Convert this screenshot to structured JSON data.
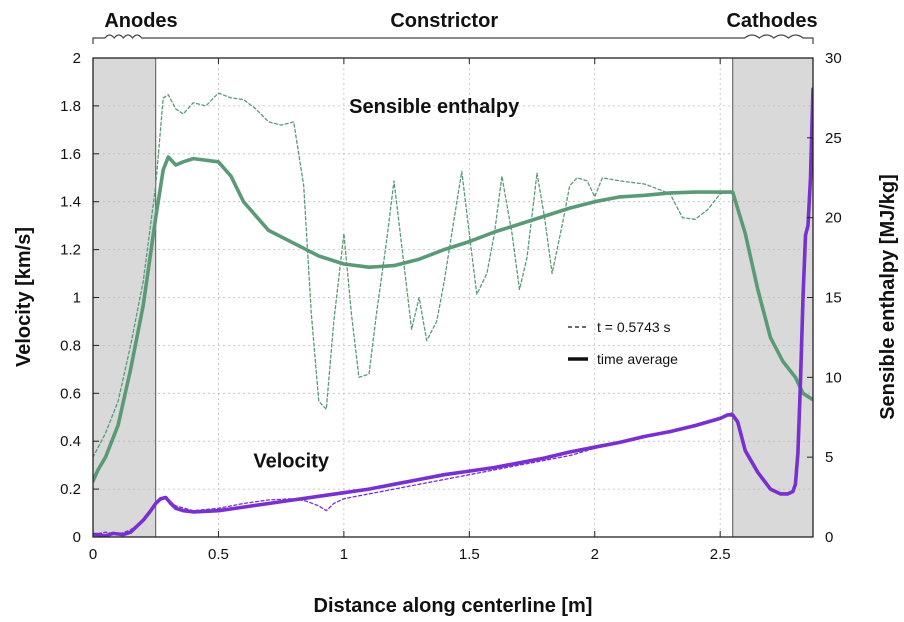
{
  "chart_data": {
    "type": "line",
    "xlabel": "Distance along centerline [m]",
    "ylabel": "Velocity [km/s]",
    "y2label": "Sensible enthalpy [MJ/kg]",
    "xlim": [
      0,
      2.87
    ],
    "ylim": [
      0,
      2
    ],
    "y2lim": [
      0,
      30
    ],
    "xticks": [
      "0",
      "0.5",
      "1",
      "1.5",
      "2",
      "2.5"
    ],
    "xtick_values": [
      0,
      0.5,
      1,
      1.5,
      2,
      2.5
    ],
    "yticks": [
      "0",
      "0.2",
      "0.4",
      "0.6",
      "0.8",
      "1",
      "1.2",
      "1.4",
      "1.6",
      "1.8",
      "2"
    ],
    "ytick_values": [
      0,
      0.2,
      0.4,
      0.6,
      0.8,
      1,
      1.2,
      1.4,
      1.6,
      1.8,
      2
    ],
    "y2ticks": [
      "0",
      "5",
      "10",
      "15",
      "20",
      "25",
      "30"
    ],
    "y2tick_values": [
      0,
      5,
      10,
      15,
      20,
      25,
      30
    ],
    "grid": true,
    "regions": [
      {
        "label": "Anodes",
        "x0": 0,
        "x1": 0.25,
        "shaded": true
      },
      {
        "label": "Constrictor",
        "x0": 0.25,
        "x1": 2.55,
        "shaded": false
      },
      {
        "label": "Cathodes",
        "x0": 2.55,
        "x1": 2.87,
        "shaded": true
      }
    ],
    "annotations": [
      {
        "text": "Sensible enthalpy",
        "x": 1.36,
        "y": 1.77
      },
      {
        "text": "Velocity",
        "x": 0.79,
        "y": 0.29
      }
    ],
    "legend": {
      "placement": "center-right",
      "entries": [
        {
          "label": "t = 0.5743 s",
          "style": "dashed"
        },
        {
          "label": "time average",
          "style": "solid"
        }
      ]
    },
    "colors": {
      "enthalpy": "#5a9a77",
      "velocity": "#7a2fd0",
      "shade": "#d9d9d9"
    },
    "series": [
      {
        "name": "Sensible enthalpy",
        "axis": "right",
        "style": "solid",
        "x": [
          0,
          0.02,
          0.05,
          0.1,
          0.15,
          0.2,
          0.25,
          0.28,
          0.3,
          0.33,
          0.36,
          0.4,
          0.5,
          0.55,
          0.6,
          0.7,
          0.8,
          0.9,
          1.0,
          1.1,
          1.2,
          1.3,
          1.4,
          1.5,
          1.6,
          1.7,
          1.8,
          1.9,
          2.0,
          2.1,
          2.2,
          2.3,
          2.4,
          2.5,
          2.55,
          2.6,
          2.65,
          2.7,
          2.75,
          2.8,
          2.83,
          2.87
        ],
        "values": [
          3.5,
          4.2,
          5.0,
          7.0,
          10.5,
          14.5,
          20.0,
          23.0,
          23.8,
          23.3,
          23.5,
          23.7,
          23.5,
          22.6,
          21.0,
          19.2,
          18.4,
          17.6,
          17.1,
          16.9,
          17.0,
          17.4,
          18.0,
          18.5,
          19.1,
          19.6,
          20.1,
          20.6,
          21.0,
          21.3,
          21.4,
          21.55,
          21.6,
          21.6,
          21.6,
          19.0,
          15.5,
          12.5,
          11.0,
          10.0,
          9.0,
          8.6
        ]
      },
      {
        "name": "Sensible enthalpy",
        "axis": "right",
        "style": "dashed",
        "x": [
          0,
          0.05,
          0.1,
          0.15,
          0.2,
          0.25,
          0.28,
          0.3,
          0.33,
          0.36,
          0.4,
          0.45,
          0.5,
          0.55,
          0.6,
          0.65,
          0.7,
          0.75,
          0.8,
          0.84,
          0.87,
          0.9,
          0.93,
          0.96,
          1.0,
          1.03,
          1.06,
          1.1,
          1.13,
          1.17,
          1.2,
          1.24,
          1.27,
          1.3,
          1.33,
          1.37,
          1.4,
          1.44,
          1.47,
          1.5,
          1.53,
          1.57,
          1.6,
          1.63,
          1.67,
          1.7,
          1.73,
          1.77,
          1.8,
          1.83,
          1.87,
          1.9,
          1.93,
          1.97,
          2.0,
          2.03,
          2.1,
          2.2,
          2.3,
          2.35,
          2.4,
          2.45,
          2.5,
          2.55
        ],
        "values": [
          5.0,
          6.5,
          8.5,
          12.0,
          16.0,
          22.0,
          27.5,
          27.7,
          26.8,
          26.5,
          27.2,
          27.0,
          27.8,
          27.5,
          27.4,
          26.8,
          26.0,
          25.8,
          26.0,
          22.0,
          14.0,
          8.5,
          8.0,
          13.5,
          19.0,
          14.0,
          10.0,
          10.2,
          14.0,
          18.5,
          22.3,
          17.0,
          13.0,
          15.0,
          12.3,
          13.5,
          16.0,
          20.0,
          22.9,
          19.0,
          15.2,
          16.5,
          19.0,
          22.6,
          19.0,
          15.5,
          17.5,
          22.8,
          20.0,
          16.5,
          19.5,
          22.0,
          22.5,
          22.3,
          21.3,
          22.5,
          22.3,
          22.1,
          21.5,
          20.0,
          19.9,
          20.5,
          21.5,
          21.6
        ]
      },
      {
        "name": "Velocity",
        "axis": "left",
        "style": "solid",
        "x": [
          0,
          0.02,
          0.05,
          0.08,
          0.12,
          0.15,
          0.18,
          0.2,
          0.23,
          0.25,
          0.27,
          0.29,
          0.31,
          0.33,
          0.36,
          0.4,
          0.5,
          0.6,
          0.7,
          0.8,
          0.9,
          1.0,
          1.1,
          1.2,
          1.3,
          1.4,
          1.5,
          1.6,
          1.7,
          1.8,
          1.9,
          2.0,
          2.1,
          2.2,
          2.3,
          2.4,
          2.5,
          2.53,
          2.55,
          2.57,
          2.6,
          2.65,
          2.7,
          2.74,
          2.77,
          2.79,
          2.8,
          2.81,
          2.82,
          2.83,
          2.84,
          2.85,
          2.86,
          2.87
        ],
        "values": [
          0.01,
          0.01,
          0.005,
          0.015,
          0.01,
          0.02,
          0.05,
          0.07,
          0.11,
          0.14,
          0.16,
          0.165,
          0.14,
          0.12,
          0.11,
          0.105,
          0.11,
          0.125,
          0.14,
          0.155,
          0.17,
          0.185,
          0.2,
          0.22,
          0.24,
          0.26,
          0.275,
          0.29,
          0.31,
          0.33,
          0.355,
          0.375,
          0.395,
          0.42,
          0.44,
          0.465,
          0.495,
          0.51,
          0.51,
          0.48,
          0.36,
          0.27,
          0.2,
          0.18,
          0.18,
          0.19,
          0.22,
          0.35,
          0.65,
          1.0,
          1.26,
          1.3,
          1.5,
          1.87
        ]
      },
      {
        "name": "Velocity",
        "axis": "left",
        "style": "dashed",
        "x": [
          0,
          0.05,
          0.1,
          0.15,
          0.2,
          0.25,
          0.29,
          0.33,
          0.4,
          0.5,
          0.6,
          0.7,
          0.8,
          0.85,
          0.9,
          0.93,
          0.96,
          1.0,
          1.05,
          1.1,
          1.2,
          1.3,
          1.4,
          1.5,
          1.6,
          1.7,
          1.8,
          1.9,
          2.0,
          2.1,
          2.2,
          2.3,
          2.4,
          2.5,
          2.55
        ],
        "values": [
          0.01,
          0.02,
          0.01,
          0.03,
          0.07,
          0.14,
          0.165,
          0.13,
          0.11,
          0.12,
          0.14,
          0.155,
          0.16,
          0.15,
          0.13,
          0.11,
          0.14,
          0.16,
          0.17,
          0.18,
          0.2,
          0.22,
          0.24,
          0.26,
          0.28,
          0.3,
          0.32,
          0.34,
          0.37,
          0.4,
          0.42,
          0.44,
          0.47,
          0.5,
          0.52
        ]
      }
    ]
  }
}
